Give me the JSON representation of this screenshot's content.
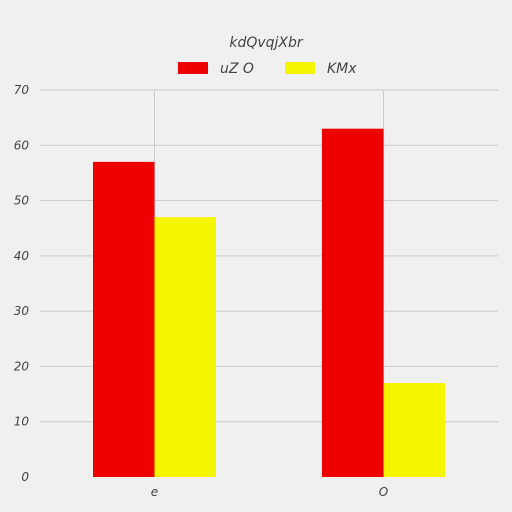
{
  "chart_data": {
    "type": "bar",
    "title": "kdQvqjXbr",
    "xlabel": "",
    "ylabel": "",
    "categories": [
      "e",
      "O"
    ],
    "series": [
      {
        "name": "uZ O",
        "color": "#ee0000",
        "values": [
          57,
          63
        ]
      },
      {
        "name": "KMx",
        "color": "#f5f500",
        "values": [
          47,
          17
        ]
      }
    ],
    "ylim": [
      0,
      70
    ],
    "yticks": [
      "0",
      "10",
      "20",
      "30",
      "40",
      "50",
      "60",
      "70"
    ],
    "grid": true,
    "legend_position": "top-center"
  },
  "colors": {
    "background": "#f0f0f0",
    "grid": "#cbcbcb",
    "text": "#444444"
  }
}
